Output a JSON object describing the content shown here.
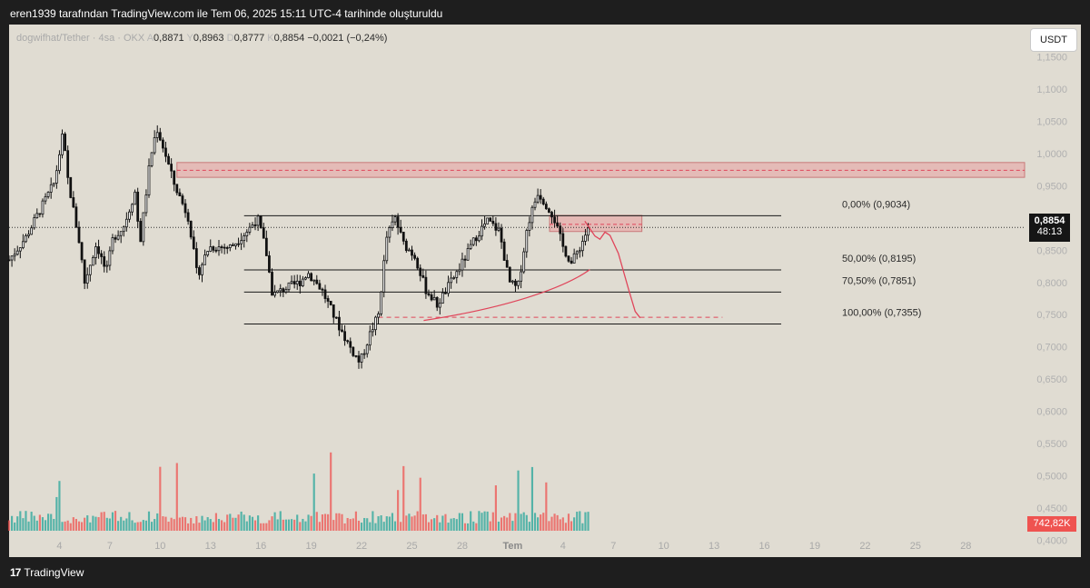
{
  "header": {
    "credit": "eren1939 tarafından TradingView.com ile Tem 06, 2025 15:11 UTC-4 tarihinde oluşturuldu"
  },
  "legend": {
    "symbol": "dogwifhat/Tether · 4sa · OKX",
    "o_label": "A",
    "o": "0,8871",
    "h_label": "Y",
    "h": "0,8963",
    "l_label": "D",
    "l": "0,8777",
    "c_label": "K",
    "c": "0,8854",
    "change": "−0,0021 (−0,24%)"
  },
  "currency_button": "USDT",
  "last_price": {
    "price": "0,8854",
    "countdown": "48:13"
  },
  "volume_badge": "742,82K",
  "footer": {
    "brand": "TradingView"
  },
  "colors": {
    "up": "#26a69a",
    "down": "#ef5350",
    "background": "#e0dcd2",
    "line": "#000000",
    "zone": "#e8a1a1"
  },
  "chart_data": {
    "type": "candlestick",
    "y_ticks": [
      "1,1500",
      "1,1000",
      "1,0500",
      "1,0000",
      "0,9500",
      "0,9000",
      "0,8500",
      "0,8000",
      "0,7500",
      "0,7000",
      "0,6500",
      "0,6000",
      "0,5500",
      "0,5000",
      "0,4500",
      "0,4000"
    ],
    "y_tick_values": [
      1.15,
      1.1,
      1.05,
      1.0,
      0.95,
      0.9,
      0.85,
      0.8,
      0.75,
      0.7,
      0.65,
      0.6,
      0.55,
      0.5,
      0.45,
      0.4
    ],
    "ylim": [
      0.374,
      1.2
    ],
    "x_ticks": [
      "4",
      "7",
      "10",
      "13",
      "16",
      "19",
      "22",
      "25",
      "28",
      "Tem",
      "4",
      "7",
      "10",
      "13",
      "16",
      "19",
      "22",
      "25",
      "28"
    ],
    "x_tick_days": [
      4,
      7,
      10,
      13,
      16,
      19,
      22,
      25,
      28,
      31,
      34,
      37,
      40,
      43,
      46,
      49,
      52,
      55,
      58
    ],
    "xlim": [
      1.0,
      61.5
    ],
    "close_path_days": [
      1.0,
      2.0,
      2.5,
      3.3,
      3.7,
      4.2,
      4.5,
      5.2,
      5.5,
      6.2,
      6.8,
      7.2,
      7.8,
      8.5,
      8.8,
      9.4,
      9.8,
      10.3,
      10.8,
      11.7,
      12.2,
      12.9,
      13.4,
      14.2,
      15.2,
      15.8,
      16.3,
      16.7,
      17.4,
      18.3,
      18.8,
      19.6,
      20.5,
      21.3,
      21.9,
      22.5,
      23.0,
      23.5,
      24.0,
      24.5,
      25.2,
      25.8,
      26.5,
      27.2,
      28.0,
      28.9,
      29.5,
      30.2,
      30.8,
      31.3,
      31.9,
      32.5,
      32.9,
      33.4,
      34.0,
      34.5,
      35.1,
      35.5
    ],
    "close_path_values": [
      0.835,
      0.87,
      0.895,
      0.935,
      0.955,
      1.03,
      0.96,
      0.86,
      0.8,
      0.86,
      0.815,
      0.87,
      0.885,
      0.94,
      0.86,
      0.99,
      1.04,
      1.0,
      0.955,
      0.9,
      0.81,
      0.855,
      0.855,
      0.855,
      0.88,
      0.9,
      0.85,
      0.78,
      0.79,
      0.8,
      0.815,
      0.79,
      0.74,
      0.7,
      0.675,
      0.72,
      0.75,
      0.87,
      0.9,
      0.86,
      0.84,
      0.79,
      0.765,
      0.795,
      0.83,
      0.875,
      0.895,
      0.88,
      0.8,
      0.79,
      0.89,
      0.94,
      0.925,
      0.905,
      0.855,
      0.83,
      0.86,
      0.885
    ],
    "current_price": 0.8854,
    "fibonacci": [
      {
        "label": "0,00% (0,9034)",
        "value": 0.9034
      },
      {
        "label": "50,00% (0,8195)",
        "value": 0.8195
      },
      {
        "label": "70,50% (0,7851)",
        "value": 0.7851
      },
      {
        "label": "100,00% (0,7355)",
        "value": 0.7355
      }
    ],
    "fib_x_range": [
      15.0,
      47.0
    ],
    "resistance_zone": {
      "top": 0.986,
      "bottom": 0.963,
      "mid": 0.974,
      "x_from": 11.0,
      "x_to": 61.5
    },
    "supply_box": {
      "top": 0.904,
      "bottom": 0.879,
      "mid": 0.89,
      "x_from": 33.2,
      "x_to": 38.7
    },
    "dashed_support": {
      "value": 0.746,
      "x_from": 23.0,
      "x_to": 43.5
    },
    "trend_curve": [
      [
        25.7,
        0.741
      ],
      [
        30.5,
        0.76
      ],
      [
        34.0,
        0.79
      ],
      [
        35.6,
        0.82
      ]
    ],
    "projection_path": [
      [
        35.3,
        0.895
      ],
      [
        35.9,
        0.872
      ],
      [
        36.2,
        0.867
      ],
      [
        36.5,
        0.878
      ],
      [
        36.8,
        0.873
      ],
      [
        37.3,
        0.845
      ],
      [
        37.9,
        0.79
      ],
      [
        38.3,
        0.755
      ],
      [
        38.6,
        0.745
      ]
    ],
    "volume_max_units": 1.0
  }
}
